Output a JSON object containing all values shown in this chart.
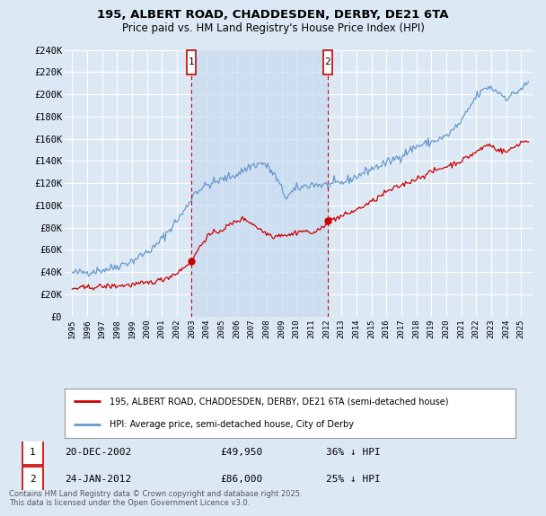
{
  "title": "195, ALBERT ROAD, CHADDESDEN, DERBY, DE21 6TA",
  "subtitle": "Price paid vs. HM Land Registry's House Price Index (HPI)",
  "legend_line1": "195, ALBERT ROAD, CHADDESDEN, DERBY, DE21 6TA (semi-detached house)",
  "legend_line2": "HPI: Average price, semi-detached house, City of Derby",
  "annotation1_date": "20-DEC-2002",
  "annotation1_price": "£49,950",
  "annotation1_hpi": "36% ↓ HPI",
  "annotation2_date": "24-JAN-2012",
  "annotation2_price": "£86,000",
  "annotation2_hpi": "25% ↓ HPI",
  "footnote": "Contains HM Land Registry data © Crown copyright and database right 2025.\nThis data is licensed under the Open Government Licence v3.0.",
  "ylim": [
    0,
    240000
  ],
  "yticks": [
    0,
    20000,
    40000,
    60000,
    80000,
    100000,
    120000,
    140000,
    160000,
    180000,
    200000,
    220000,
    240000
  ],
  "background_color": "#dce9f5",
  "plot_bg_color": "#dce9f5",
  "grid_color": "#ffffff",
  "red_color": "#cc0000",
  "blue_color": "#6699cc",
  "shade_color": "#c8daf0",
  "vline1_x": 2002.97,
  "vline2_x": 2012.07,
  "dot1_y": 49950,
  "dot2_y": 86000,
  "xlim_left": 1994.5,
  "xlim_right": 2025.83
}
